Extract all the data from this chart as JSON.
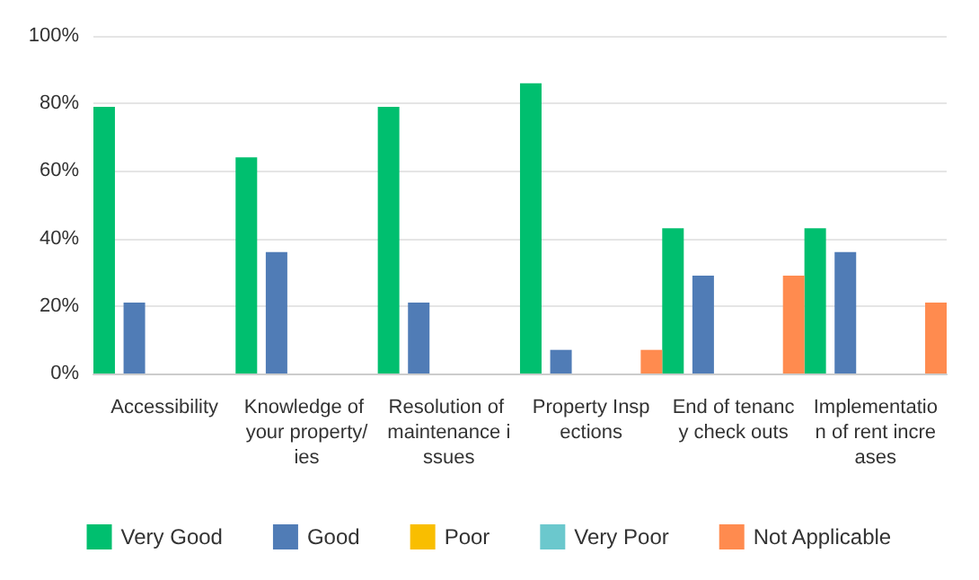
{
  "chart_data": {
    "type": "bar",
    "categories": [
      "Accessibility",
      "Knowledge of your property/ies",
      "Resolution of maintenance issues",
      "Property Inspections",
      "End of tenancy check outs",
      "Implementation of rent increases"
    ],
    "series": [
      {
        "name": "Very Good",
        "color": "#00bf6f",
        "values": [
          79,
          64,
          79,
          86,
          43,
          43
        ]
      },
      {
        "name": "Good",
        "color": "#507cb6",
        "values": [
          21,
          36,
          21,
          7,
          29,
          36
        ]
      },
      {
        "name": "Poor",
        "color": "#f9be00",
        "values": [
          0,
          0,
          0,
          0,
          0,
          0
        ]
      },
      {
        "name": "Very Poor",
        "color": "#6bc8cd",
        "values": [
          0,
          0,
          0,
          0,
          0,
          0
        ]
      },
      {
        "name": "Not Applicable",
        "color": "#ff8b4f",
        "values": [
          0,
          0,
          0,
          7,
          29,
          21
        ]
      }
    ],
    "ylim": [
      0,
      100
    ],
    "yticks": [
      {
        "value": 0,
        "label": "0%"
      },
      {
        "value": 20,
        "label": "20%"
      },
      {
        "value": 40,
        "label": "40%"
      },
      {
        "value": 60,
        "label": "60%"
      },
      {
        "value": 80,
        "label": "80%"
      },
      {
        "value": 100,
        "label": "100%"
      }
    ],
    "grid": "y",
    "legend": "bottom"
  }
}
